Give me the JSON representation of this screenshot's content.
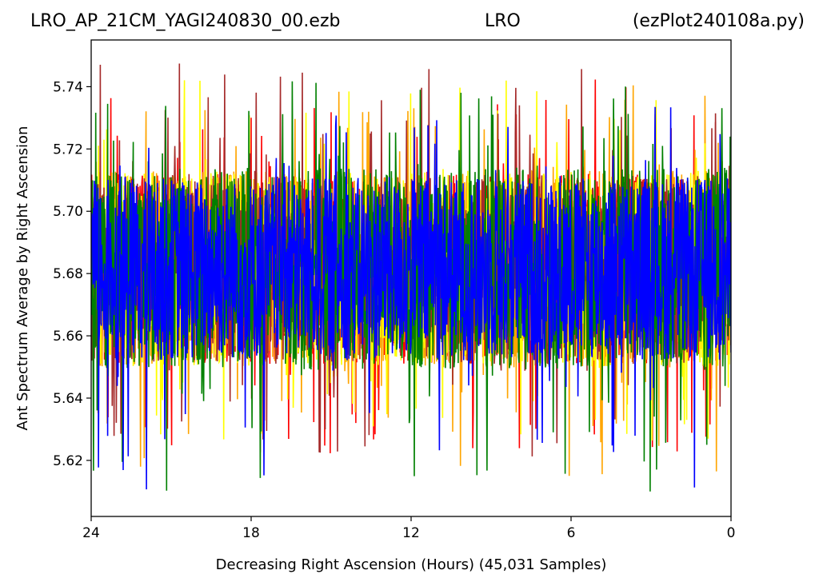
{
  "header": {
    "left": "LRO_AP_21CM_YAGI240830_00.ezb",
    "middle": "LRO",
    "right": "(ezPlot240108a.py)"
  },
  "chart_data": {
    "type": "line",
    "title": "LRO_AP_21CM_YAGI240830_00.ezb            LRO          (ezPlot240108a.py)",
    "xlabel": "Decreasing Right Ascension (Hours) (45,031 Samples)",
    "ylabel": "Ant Spectrum Average by Right Ascension",
    "xlim": [
      24,
      0
    ],
    "ylim": [
      5.602,
      5.755
    ],
    "x_ticks": [
      "24",
      "18",
      "12",
      "6",
      "0"
    ],
    "y_ticks": [
      "5.62",
      "5.64",
      "5.66",
      "5.68",
      "5.70",
      "5.72",
      "5.74"
    ],
    "samples": 45031,
    "grid": false,
    "series": [
      {
        "color": "#ff0000",
        "band_low": 5.651,
        "band_high": 5.712,
        "spike_max": 5.75,
        "spike_min": 5.62
      },
      {
        "color": "#ffa500",
        "band_low": 5.65,
        "band_high": 5.713,
        "spike_max": 5.742,
        "spike_min": 5.615
      },
      {
        "color": "#ffff00",
        "band_low": 5.65,
        "band_high": 5.713,
        "spike_max": 5.744,
        "spike_min": 5.626
      },
      {
        "color": "#a52a2a",
        "band_low": 5.651,
        "band_high": 5.712,
        "spike_max": 5.748,
        "spike_min": 5.62
      },
      {
        "color": "#008000",
        "band_low": 5.649,
        "band_high": 5.714,
        "spike_max": 5.742,
        "spike_min": 5.609
      },
      {
        "color": "#0000ff",
        "band_low": 5.652,
        "band_high": 5.711,
        "spike_max": 5.735,
        "spike_min": 5.61
      }
    ]
  }
}
